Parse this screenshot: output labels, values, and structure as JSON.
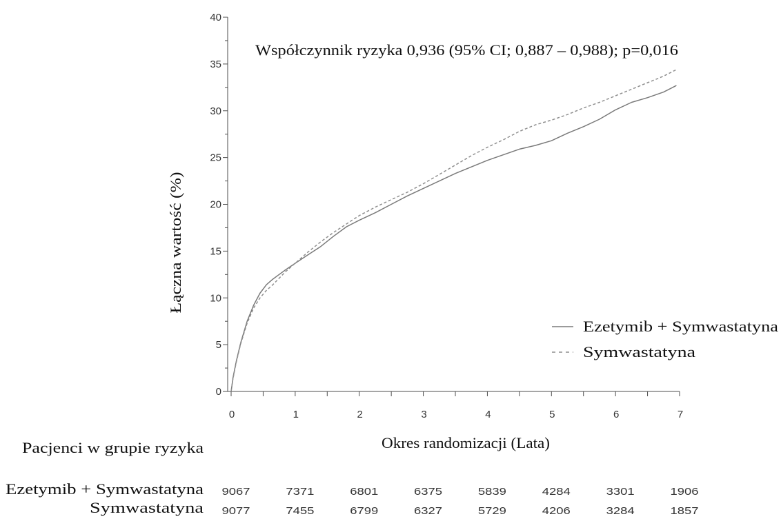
{
  "chart_data": {
    "type": "line",
    "annotation": "Współczynnik ryzyka 0,936 (95% CI; 0,887 – 0,988); p=0,016",
    "xlabel": "Okres randomizacji (Lata)",
    "ylabel": "Łączna wartość (%)",
    "xlim": [
      0,
      7
    ],
    "ylim": [
      0,
      40
    ],
    "xticks": [
      0,
      1,
      2,
      3,
      4,
      5,
      6,
      7
    ],
    "yticks": [
      0,
      5,
      10,
      15,
      20,
      25,
      30,
      35,
      40
    ],
    "grid": false,
    "legend_position": "bottom-right",
    "series": [
      {
        "name": "Ezetymib + Symwastatyna",
        "line_style": "solid",
        "color": "#7a7a7a",
        "x": [
          0,
          0.03,
          0.08,
          0.15,
          0.25,
          0.35,
          0.45,
          0.55,
          0.65,
          0.75,
          0.85,
          1.0,
          1.2,
          1.4,
          1.6,
          1.8,
          2.0,
          2.25,
          2.5,
          2.75,
          3.0,
          3.25,
          3.5,
          3.75,
          4.0,
          4.25,
          4.5,
          4.75,
          5.0,
          5.25,
          5.5,
          5.75,
          6.0,
          6.25,
          6.5,
          6.75,
          6.95
        ],
        "y": [
          0,
          1.5,
          3.2,
          5.2,
          7.5,
          9.2,
          10.5,
          11.4,
          12.0,
          12.5,
          13.0,
          13.7,
          14.6,
          15.5,
          16.6,
          17.6,
          18.3,
          19.1,
          20.0,
          20.9,
          21.7,
          22.5,
          23.3,
          24.0,
          24.7,
          25.3,
          25.9,
          26.3,
          26.8,
          27.6,
          28.3,
          29.1,
          30.1,
          30.9,
          31.4,
          32.0,
          32.7
        ]
      },
      {
        "name": "Symwastatyna",
        "line_style": "dashed",
        "color": "#8f8f8f",
        "x": [
          0,
          0.03,
          0.08,
          0.15,
          0.25,
          0.35,
          0.45,
          0.55,
          0.65,
          0.75,
          0.85,
          1.0,
          1.2,
          1.4,
          1.6,
          1.8,
          2.0,
          2.25,
          2.5,
          2.75,
          3.0,
          3.25,
          3.5,
          3.75,
          4.0,
          4.25,
          4.5,
          4.75,
          5.0,
          5.25,
          5.5,
          5.75,
          6.0,
          6.25,
          6.5,
          6.75,
          6.95
        ],
        "y": [
          0,
          1.4,
          3.1,
          5.1,
          7.3,
          8.9,
          10.0,
          10.8,
          11.4,
          12.1,
          12.8,
          13.7,
          14.9,
          16.0,
          17.0,
          17.9,
          18.8,
          19.7,
          20.5,
          21.3,
          22.2,
          23.2,
          24.2,
          25.2,
          26.1,
          26.9,
          27.8,
          28.5,
          29.0,
          29.6,
          30.3,
          30.9,
          31.6,
          32.3,
          33.0,
          33.7,
          34.4
        ]
      }
    ],
    "at_risk": {
      "title": "Pacjenci w grupie ryzyka",
      "rows": [
        {
          "label": "Ezetymib + Symwastatyna",
          "values": [
            9067,
            7371,
            6801,
            6375,
            5839,
            4284,
            3301,
            1906
          ]
        },
        {
          "label": "Symwastatyna",
          "values": [
            9077,
            7455,
            6799,
            6327,
            5729,
            4206,
            3284,
            1857
          ]
        }
      ]
    }
  }
}
